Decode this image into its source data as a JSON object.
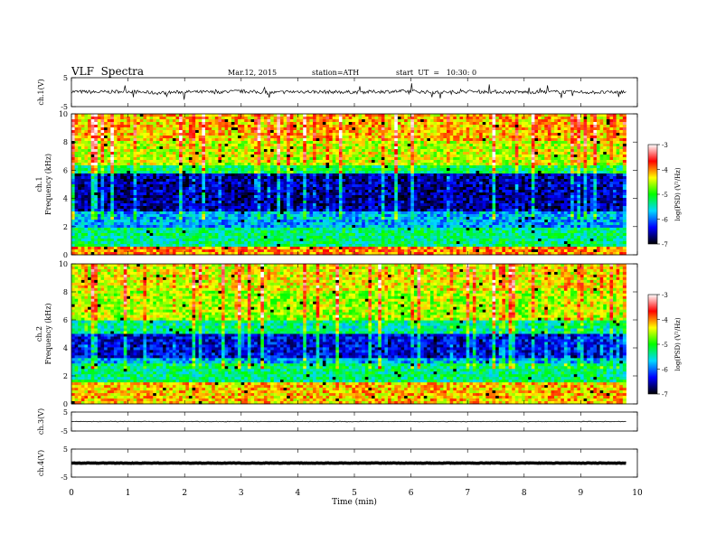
{
  "header": {
    "title": "VLF  Spectra",
    "date": "Mar.12, 2015",
    "station": "station=ATH",
    "start": "start  UT  =   10:30: 0"
  },
  "chart_data": [
    {
      "type": "line",
      "panel": "ch1-waveform",
      "ylabel": "ch.1(V)",
      "ylim": [
        -5,
        5
      ],
      "yticks": [
        "5",
        "-5"
      ],
      "x": [
        0,
        0.5,
        1,
        1.5,
        2,
        2.5,
        3,
        3.5,
        4,
        4.5,
        5,
        5.5,
        6,
        6.5,
        7,
        7.5,
        8,
        8.5,
        9,
        9.5,
        9.8
      ],
      "values": [
        0.2,
        0.0,
        0.3,
        -0.3,
        0.1,
        0.0,
        0.3,
        -0.2,
        0.2,
        0.1,
        0.0,
        0.2,
        0.3,
        -0.1,
        0.2,
        0.1,
        0.0,
        0.1,
        0.0,
        -0.1,
        0.1
      ]
    },
    {
      "type": "heatmap",
      "panel": "ch1-spectrogram",
      "ylabel": "ch.1\nFrequency (kHz)",
      "ylim": [
        0,
        10
      ],
      "yticks": [
        "0",
        "2",
        "4",
        "6",
        "8",
        "10"
      ],
      "colorbar": {
        "label": "log(PSD) (V²/Hz)",
        "range": [
          -7,
          -3
        ],
        "ticks": [
          "-3",
          "-4",
          "-5",
          "-6",
          "-7"
        ]
      },
      "bands": [
        {
          "from": 0,
          "to": 0.6,
          "level": -4.0
        },
        {
          "from": 0.6,
          "to": 2.0,
          "level": -5.3
        },
        {
          "from": 2.0,
          "to": 3.0,
          "level": -5.8
        },
        {
          "from": 3.0,
          "to": 5.8,
          "level": -6.6
        },
        {
          "from": 5.8,
          "to": 6.3,
          "level": -5.2
        },
        {
          "from": 6.3,
          "to": 8.0,
          "level": -4.5
        },
        {
          "from": 8.0,
          "to": 10.0,
          "level": -4.2
        }
      ]
    },
    {
      "type": "heatmap",
      "panel": "ch2-spectrogram",
      "ylabel": "ch.2\nFrequency (kHz)",
      "ylim": [
        0,
        10
      ],
      "yticks": [
        "0",
        "2",
        "4",
        "6",
        "8",
        "10"
      ],
      "colorbar": {
        "label": "log(PSD) (V²/Hz)",
        "range": [
          -7,
          -3
        ],
        "ticks": [
          "-3",
          "-4",
          "-5",
          "-6",
          "-7"
        ]
      },
      "bands": [
        {
          "from": 0,
          "to": 1.5,
          "level": -4.2
        },
        {
          "from": 1.5,
          "to": 2.8,
          "level": -5.3
        },
        {
          "from": 2.8,
          "to": 3.2,
          "level": -5.8
        },
        {
          "from": 3.2,
          "to": 5.0,
          "level": -6.4
        },
        {
          "from": 5.0,
          "to": 6.0,
          "level": -5.4
        },
        {
          "from": 6.0,
          "to": 8.0,
          "level": -4.6
        },
        {
          "from": 8.0,
          "to": 10.0,
          "level": -4.4
        }
      ]
    },
    {
      "type": "line",
      "panel": "ch3-waveform",
      "ylabel": "ch.3(V)",
      "ylim": [
        -5,
        5
      ],
      "yticks": [
        "5",
        "-5"
      ],
      "x": [
        0,
        9.8
      ],
      "values": [
        0.0,
        0.0
      ]
    },
    {
      "type": "line",
      "panel": "ch4-waveform",
      "ylabel": "ch.4(V)",
      "ylim": [
        -5,
        5
      ],
      "yticks": [
        "5",
        "-5"
      ],
      "x": [
        0,
        9.8
      ],
      "values": [
        0.0,
        0.0
      ]
    }
  ],
  "xaxis": {
    "label": "Time  (min)",
    "range": [
      0,
      10
    ],
    "ticks": [
      "0",
      "1",
      "2",
      "3",
      "4",
      "5",
      "6",
      "7",
      "8",
      "9",
      "10"
    ]
  },
  "colors": {
    "scale": [
      "#000000",
      "#0000ff",
      "#00d8ff",
      "#00ff00",
      "#ffff00",
      "#ff0000",
      "#ffffff"
    ]
  }
}
